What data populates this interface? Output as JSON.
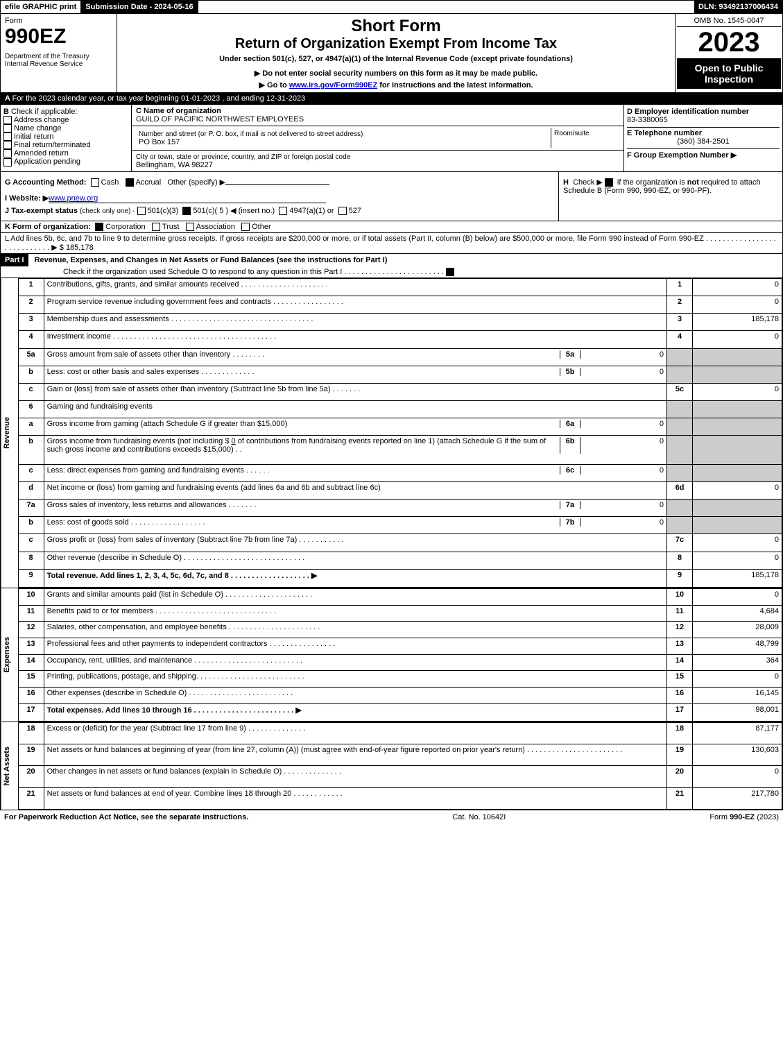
{
  "topbar": {
    "efile": "efile GRAPHIC print",
    "submission": "Submission Date - 2024-05-16",
    "dln": "DLN: 93492137006434"
  },
  "header": {
    "form_label": "Form",
    "form_no": "990EZ",
    "dept": "Department of the Treasury",
    "irs": "Internal Revenue Service",
    "title1": "Short Form",
    "title2": "Return of Organization Exempt From Income Tax",
    "subtitle": "Under section 501(c), 527, or 4947(a)(1) of the Internal Revenue Code (except private foundations)",
    "note1": "▶ Do not enter social security numbers on this form as it may be made public.",
    "note2": "▶ Go to ",
    "link": "www.irs.gov/Form990EZ",
    "note2b": " for instructions and the latest information.",
    "omb": "OMB No. 1545-0047",
    "year": "2023",
    "open": "Open to Public Inspection"
  },
  "A": {
    "text": "For the 2023 calendar year, or tax year beginning 01-01-2023 , and ending 12-31-2023"
  },
  "B": {
    "label": "Check if applicable:",
    "opts": [
      "Address change",
      "Name change",
      "Initial return",
      "Final return/terminated",
      "Amended return",
      "Application pending"
    ],
    "C_label": "C Name of organization",
    "C_val": "GUILD OF PACIFIC NORTHWEST EMPLOYEES",
    "addr_label": "Number and street (or P. O. box, if mail is not delivered to street address)",
    "room": "Room/suite",
    "addr_val": "PO Box 157",
    "city_label": "City or town, state or province, country, and ZIP or foreign postal code",
    "city_val": "Bellingham, WA  98227",
    "D_label": "D Employer identification number",
    "D_val": "83-3380065",
    "E_label": "E Telephone number",
    "E_val": "(360) 384-2501",
    "F_label": "F Group Exemption Number   ▶"
  },
  "G": {
    "label": "G Accounting Method:",
    "cash": "Cash",
    "accrual": "Accrual",
    "other": "Other (specify) ▶"
  },
  "H": {
    "label": "H",
    "text": "Check ▶ ",
    "chk": "if the organization is ",
    "not": "not",
    "text2": " required to attach Schedule B (Form 990, 990-EZ, or 990-PF)."
  },
  "I": {
    "label": "I Website: ▶",
    "val": "www.pnew.org"
  },
  "J": {
    "label": "J Tax-exempt status",
    "sub": "(check only one) -",
    "o1": "501(c)(3)",
    "o2": "501(c)( 5 ) ◀ (insert no.)",
    "o3": "4947(a)(1) or",
    "o4": "527"
  },
  "K": {
    "label": "K Form of organization:",
    "o1": "Corporation",
    "o2": "Trust",
    "o3": "Association",
    "o4": "Other"
  },
  "L": {
    "text": "L Add lines 5b, 6c, and 7b to line 9 to determine gross receipts. If gross receipts are $200,000 or more, or if total assets (Part II, column (B) below) are $500,000 or more, file Form 990 instead of Form 990-EZ",
    "dots": ". . . . . . . . . . . . . . . . . . . . . . . . . . . . ▶",
    "val": "$ 185,178"
  },
  "part1": {
    "title": "Part I",
    "heading": "Revenue, Expenses, and Changes in Net Assets or Fund Balances (see the instructions for Part I)",
    "check": "Check if the organization used Schedule O to respond to any question in this Part I",
    "dots": ". . . . . . . . . . . . . . . . . . . . . . . ."
  },
  "sidelabels": {
    "rev": "Revenue",
    "exp": "Expenses",
    "net": "Net Assets"
  },
  "lines": {
    "1": {
      "t": "Contributions, gifts, grants, and similar amounts received . . . . . . . . . . . . . . . . . . . . .",
      "v": "0"
    },
    "2": {
      "t": "Program service revenue including government fees and contracts . . . . . . . . . . . . . . . . .",
      "v": "0"
    },
    "3": {
      "t": "Membership dues and assessments . . . . . . . . . . . . . . . . . . . . . . . . . . . . . . . . . .",
      "v": "185,178"
    },
    "4": {
      "t": "Investment income . . . . . . . . . . . . . . . . . . . . . . . . . . . . . . . . . . . . . . .",
      "v": "0"
    },
    "5a": {
      "t": "Gross amount from sale of assets other than inventory . . . . . . . .",
      "v": "0"
    },
    "5b": {
      "t": "Less: cost or other basis and sales expenses . . . . . . . . . . . . .",
      "v": "0"
    },
    "5c": {
      "t": "Gain or (loss) from sale of assets other than inventory (Subtract line 5b from line 5a) . . . . . . .",
      "v": "0"
    },
    "6": {
      "t": "Gaming and fundraising events"
    },
    "6a": {
      "t": "Gross income from gaming (attach Schedule G if greater than $15,000)",
      "v": "0"
    },
    "6b": {
      "t": "Gross income from fundraising events (not including $",
      "amt": "0",
      "t2": "of contributions from fundraising events reported on line 1) (attach Schedule G if the sum of such gross income and contributions exceeds $15,000)   .  .",
      "v": "0"
    },
    "6c": {
      "t": "Less: direct expenses from gaming and fundraising events . . . . . .",
      "v": "0"
    },
    "6d": {
      "t": "Net income or (loss) from gaming and fundraising events (add lines 6a and 6b and subtract line 6c)",
      "v": "0"
    },
    "7a": {
      "t": "Gross sales of inventory, less returns and allowances . . . . . . .",
      "v": "0"
    },
    "7b": {
      "t": "Less: cost of goods sold         . . . . . . . . . . . . . . . . . .",
      "v": "0"
    },
    "7c": {
      "t": "Gross profit or (loss) from sales of inventory (Subtract line 7b from line 7a) . . . . . . . . . . .",
      "v": "0"
    },
    "8": {
      "t": "Other revenue (describe in Schedule O) . . . . . . . . . . . . . . . . . . . . . . . . . . . . .",
      "v": "0"
    },
    "9": {
      "t": "Total revenue. Add lines 1, 2, 3, 4, 5c, 6d, 7c, and 8  . . . . . . . . . . . . . . . . . . .  ▶",
      "v": "185,178",
      "bold": true
    },
    "10": {
      "t": "Grants and similar amounts paid (list in Schedule O) . . . . . . . . . . . . . . . . . . . . .",
      "v": "0"
    },
    "11": {
      "t": "Benefits paid to or for members      . . . . . . . . . . . . . . . . . . . . . . . . . . . . .",
      "v": "4,684"
    },
    "12": {
      "t": "Salaries, other compensation, and employee benefits . . . . . . . . . . . . . . . . . . . . . .",
      "v": "28,009"
    },
    "13": {
      "t": "Professional fees and other payments to independent contractors . . . . . . . . . . . . . . . .",
      "v": "48,799"
    },
    "14": {
      "t": "Occupancy, rent, utilities, and maintenance . . . . . . . . . . . . . . . . . . . . . . . . . .",
      "v": "364"
    },
    "15": {
      "t": "Printing, publications, postage, and shipping. . . . . . . . . . . . . . . . . . . . . . . . . .",
      "v": "0"
    },
    "16": {
      "t": "Other expenses (describe in Schedule O)      . . . . . . . . . . . . . . . . . . . . . . . . .",
      "v": "16,145"
    },
    "17": {
      "t": "Total expenses. Add lines 10 through 16      . . . . . . . . . . . . . . . . . . . . . . . .  ▶",
      "v": "98,001",
      "bold": true
    },
    "18": {
      "t": "Excess or (deficit) for the year (Subtract line 17 from line 9)       . . . . . . . . . . . . . .",
      "v": "87,177"
    },
    "19": {
      "t": "Net assets or fund balances at beginning of year (from line 27, column (A)) (must agree with end-of-year figure reported on prior year's return) . . . . . . . . . . . . . . . . . . . . . . .",
      "v": "130,603"
    },
    "20": {
      "t": "Other changes in net assets or fund balances (explain in Schedule O) . . . . . . . . . . . . . .",
      "v": "0"
    },
    "21": {
      "t": "Net assets or fund balances at end of year. Combine lines 18 through 20 . . . . . . . . . . . .",
      "v": "217,780"
    }
  },
  "footer": {
    "left": "For Paperwork Reduction Act Notice, see the separate instructions.",
    "mid": "Cat. No. 10642I",
    "right": "Form 990-EZ (2023)"
  }
}
